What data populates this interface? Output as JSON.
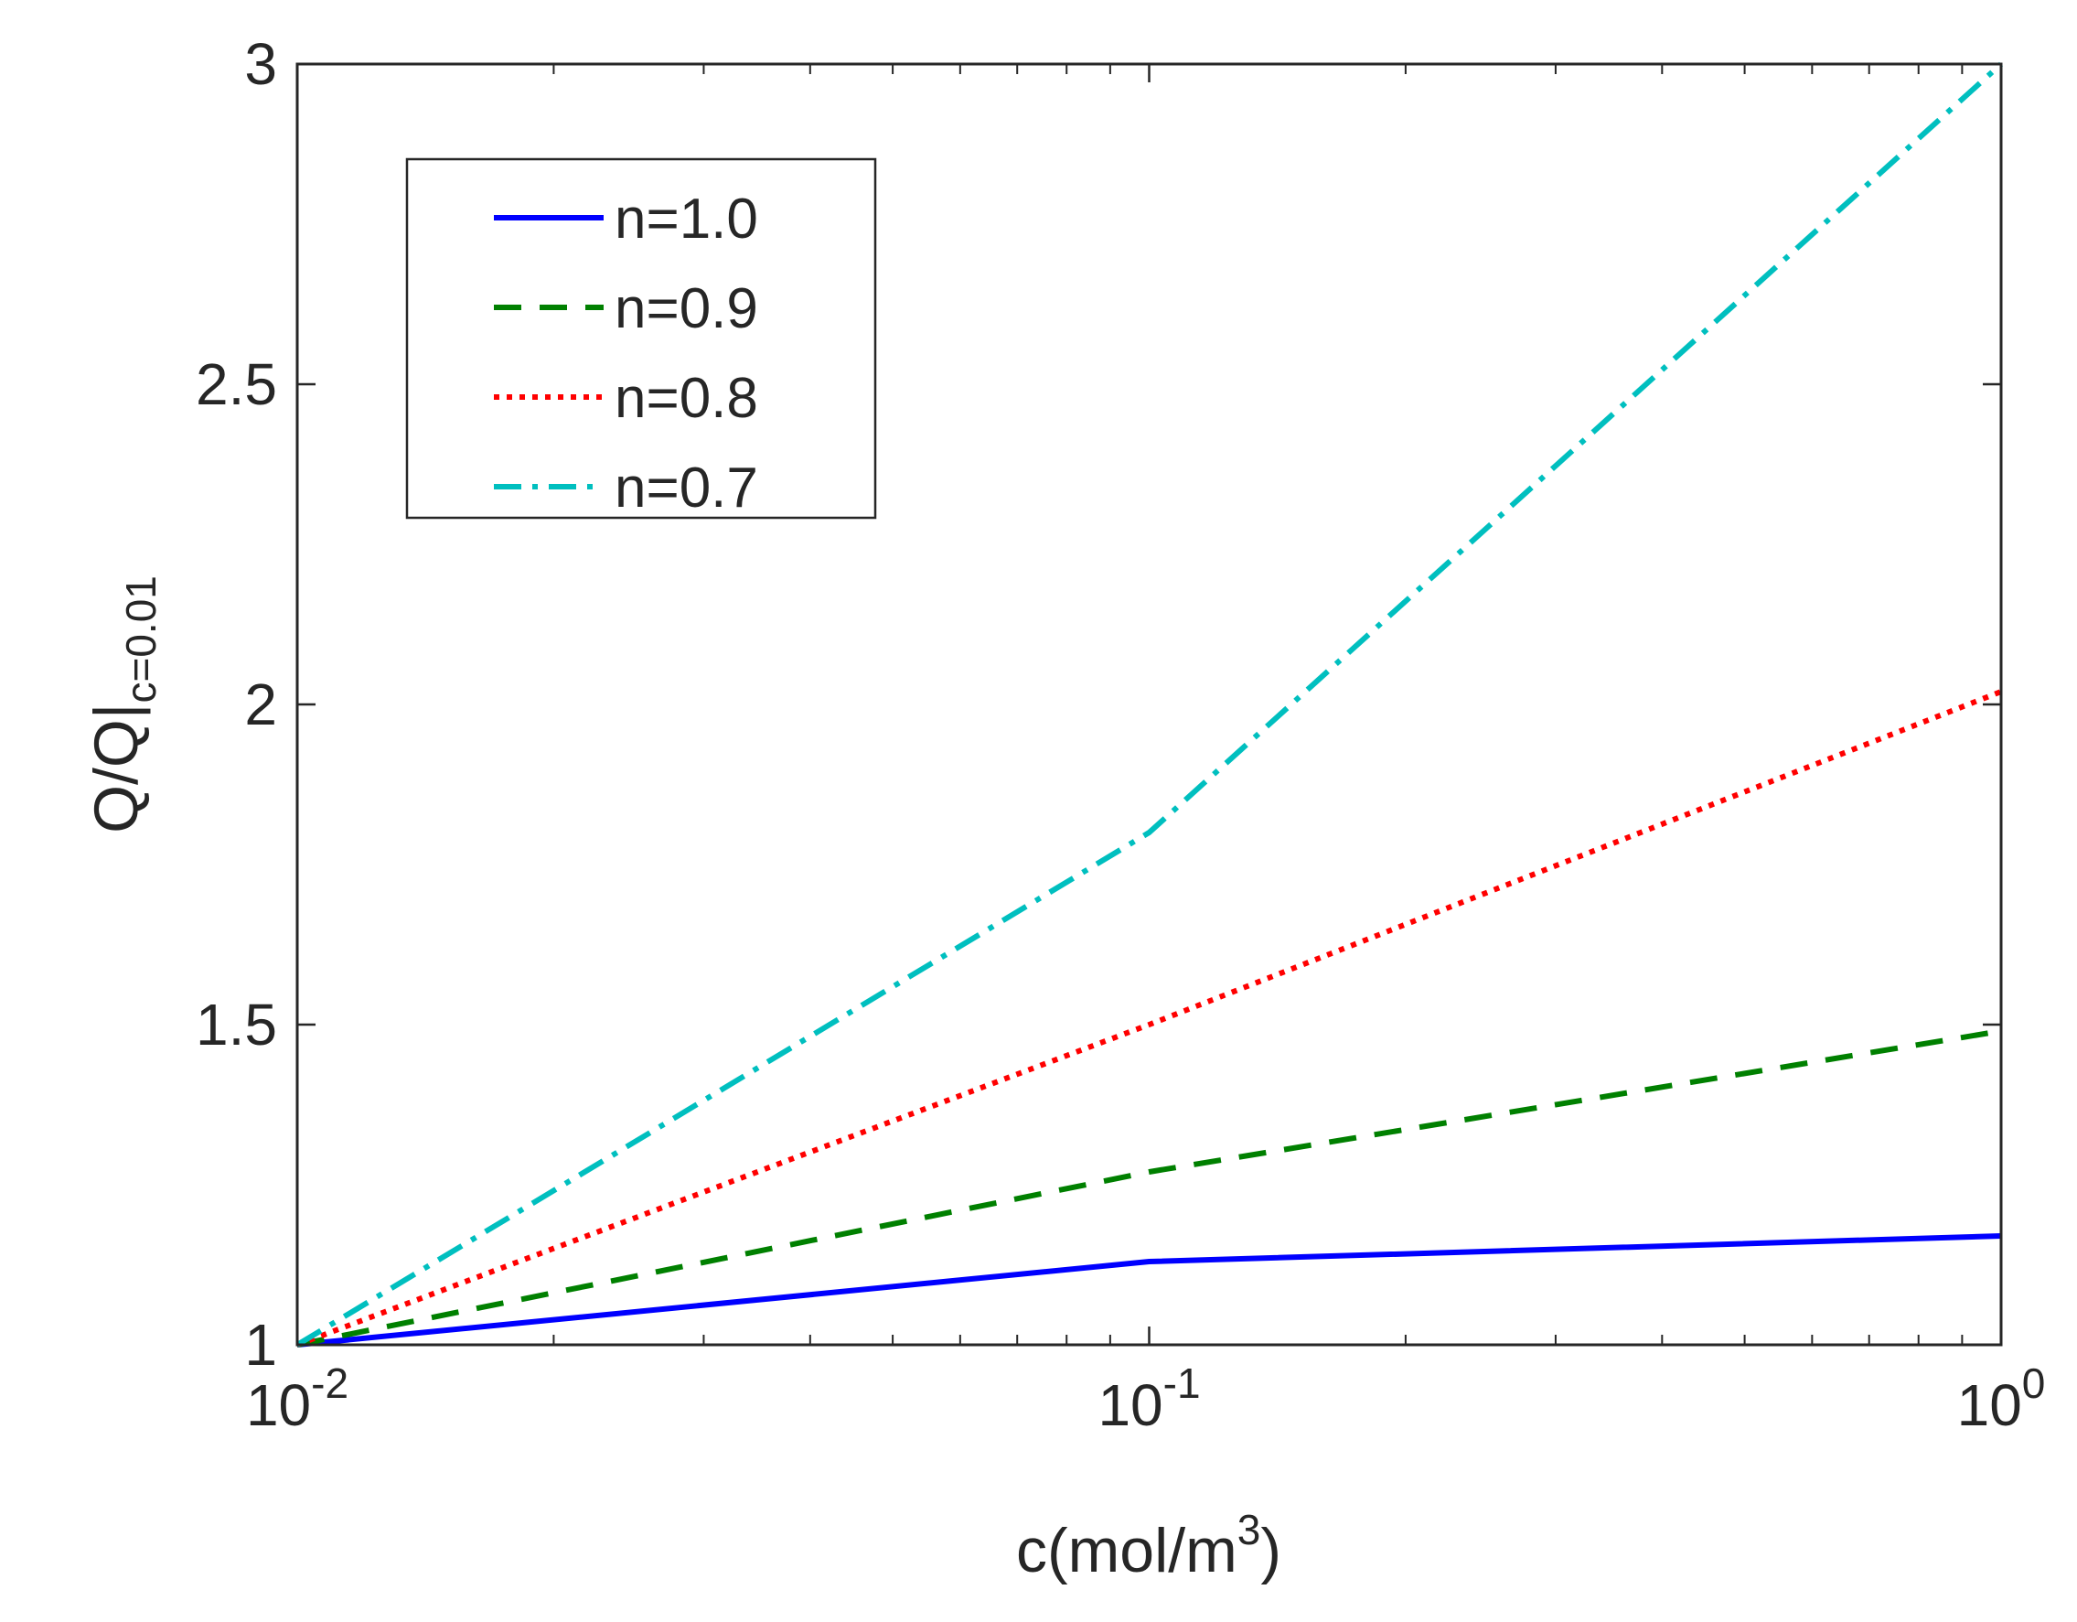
{
  "chart_data": {
    "type": "line",
    "title": "",
    "xscale": "log",
    "xlim": [
      0.01,
      1
    ],
    "ylim": [
      1,
      3
    ],
    "x": [
      0.01,
      0.1,
      1
    ],
    "xticks": [
      0.01,
      0.1,
      1
    ],
    "xtick_labels": [
      {
        "base": "10",
        "exp": "-2"
      },
      {
        "base": "10",
        "exp": "-1"
      },
      {
        "base": "10",
        "exp": "0"
      }
    ],
    "yticks": [
      1,
      1.5,
      2,
      2.5,
      3
    ],
    "ytick_labels": [
      "1",
      "1.5",
      "2",
      "2.5",
      "3"
    ],
    "xlabel": {
      "main": "c(mol/m",
      "sup": "3",
      "tail": ")"
    },
    "ylabel": {
      "main": "Q/Q|",
      "sub": "c=0.01"
    },
    "legend_position": "top-left",
    "grid": false,
    "series": [
      {
        "name": "n=1.0",
        "color": "#0000ff",
        "style": "solid",
        "values": [
          1.0,
          1.13,
          1.17
        ]
      },
      {
        "name": "n=0.9",
        "color": "#008000",
        "style": "dashed",
        "values": [
          1.0,
          1.27,
          1.49
        ]
      },
      {
        "name": "n=0.8",
        "color": "#ff0000",
        "style": "dotted",
        "values": [
          1.0,
          1.5,
          2.02
        ]
      },
      {
        "name": "n=0.7",
        "color": "#00bfbf",
        "style": "dashdot",
        "values": [
          1.0,
          1.8,
          3.0
        ]
      }
    ]
  }
}
